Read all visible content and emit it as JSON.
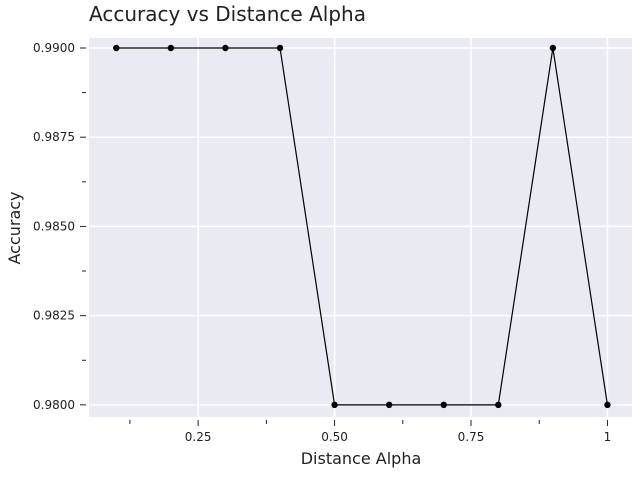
{
  "chart_data": {
    "type": "line",
    "title": "Accuracy vs Distance Alpha",
    "xlabel": "Distance Alpha",
    "ylabel": "Accuracy",
    "xlim": [
      0.05,
      1.045
    ],
    "ylim": [
      0.97966,
      0.99028
    ],
    "x_ticks": [
      {
        "value": 0.25,
        "label": "0.25"
      },
      {
        "value": 0.5,
        "label": "0.50"
      },
      {
        "value": 0.75,
        "label": "0.75"
      },
      {
        "value": 1.0,
        "label": "1"
      }
    ],
    "x_minor_ticks": [
      0.125,
      0.375,
      0.625,
      0.875
    ],
    "y_ticks": [
      {
        "value": 0.98,
        "label": "0.9800"
      },
      {
        "value": 0.9825,
        "label": "0.9825"
      },
      {
        "value": 0.985,
        "label": "0.9850"
      },
      {
        "value": 0.9875,
        "label": "0.9875"
      },
      {
        "value": 0.99,
        "label": "0.9900"
      }
    ],
    "y_minor_ticks": [
      0.98125,
      0.98375,
      0.98625,
      0.98875
    ],
    "grid": true,
    "background": "#EAEAF2",
    "line_color": "#000000",
    "series": [
      {
        "x": [
          0.1,
          0.2,
          0.3,
          0.4,
          0.5,
          0.6,
          0.7,
          0.8,
          0.9,
          1.0
        ],
        "y": [
          0.99,
          0.99,
          0.99,
          0.99,
          0.98,
          0.98,
          0.98,
          0.98,
          0.99,
          0.98
        ]
      }
    ]
  }
}
